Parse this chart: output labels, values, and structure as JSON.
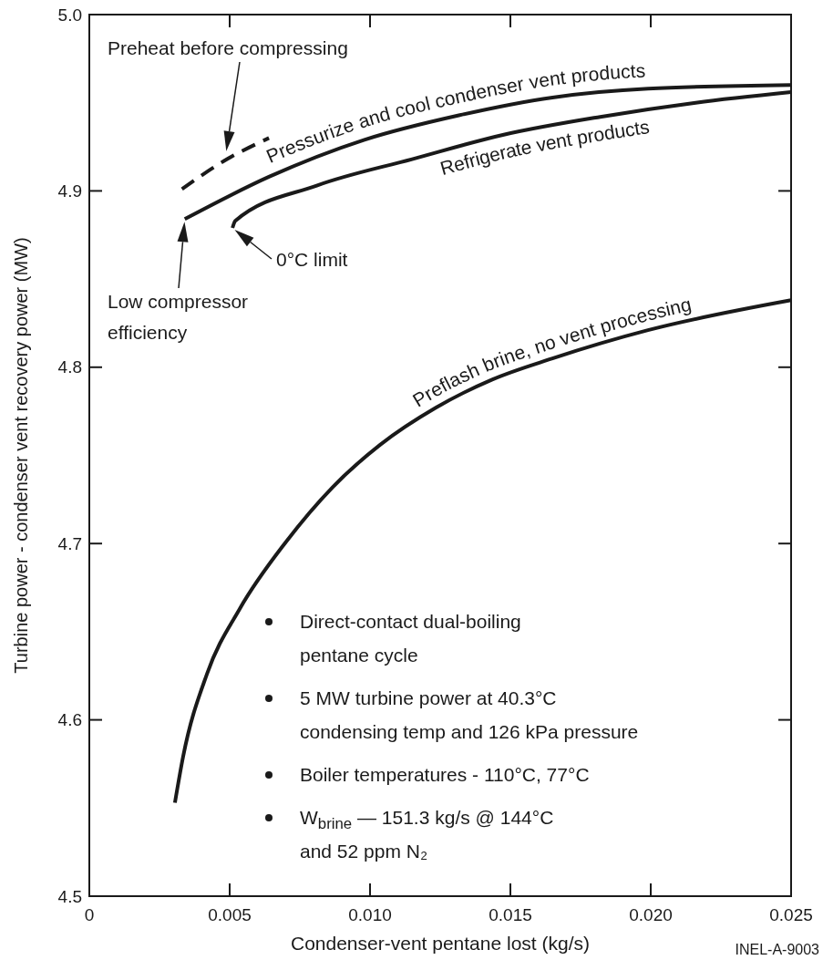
{
  "chart_data": {
    "type": "line",
    "xlabel": "Condenser-vent pentane lost (kg/s)",
    "ylabel": "Turbine power - condenser vent recovery power (MW)",
    "xlim": [
      0,
      0.025
    ],
    "ylim": [
      4.5,
      5.0
    ],
    "xticks": [
      {
        "value": 0,
        "label": "0"
      },
      {
        "value": 0.005,
        "label": "0.005"
      },
      {
        "value": 0.01,
        "label": "0.010"
      },
      {
        "value": 0.015,
        "label": "0.015"
      },
      {
        "value": 0.02,
        "label": "0.020"
      },
      {
        "value": 0.025,
        "label": "0.025"
      }
    ],
    "yticks": [
      {
        "value": 4.5,
        "label": "4.5"
      },
      {
        "value": 4.6,
        "label": "4.6"
      },
      {
        "value": 4.7,
        "label": "4.7"
      },
      {
        "value": 4.8,
        "label": "4.8"
      },
      {
        "value": 4.9,
        "label": "4.9"
      },
      {
        "value": 5.0,
        "label": "5.0"
      }
    ],
    "grid": false,
    "legend": false,
    "marker": "none",
    "line_style": "solid",
    "series": [
      {
        "color": "#1a1a1a",
        "line_style": "dashed",
        "x": [
          0.0033,
          0.0048,
          0.0064
        ],
        "values": [
          4.901,
          4.917,
          4.93
        ]
      },
      {
        "name": "Pressurize and cool condenser vent products",
        "color": "#1a1a1a",
        "x": [
          0.0034,
          0.0064,
          0.0098,
          0.0132,
          0.0165,
          0.0199,
          0.025
        ],
        "values": [
          4.884,
          4.908,
          4.929,
          4.943,
          4.953,
          4.958,
          4.96
        ]
      },
      {
        "name": "Refrigerate vent products",
        "color": "#1a1a1a",
        "x": [
          0.0051,
          0.0052,
          0.0081,
          0.0115,
          0.0148,
          0.0182,
          0.0216,
          0.025
        ],
        "values": [
          4.879,
          4.883,
          4.903,
          4.918,
          4.932,
          4.942,
          4.95,
          4.956
        ]
      },
      {
        "name": "Preflash brine, no vent processing",
        "color": "#1a1a1a",
        "x": [
          0.00305,
          0.00334,
          0.00419,
          0.00536,
          0.00701,
          0.00867,
          0.01036,
          0.01234,
          0.01435,
          0.0165,
          0.0199,
          0.025
        ],
        "values": [
          4.553,
          4.579,
          4.626,
          4.663,
          4.701,
          4.732,
          4.756,
          4.777,
          4.793,
          4.805,
          4.821,
          4.838
        ]
      }
    ],
    "annotations": [
      "Preheat before compressing",
      "Low compressor\nefficiency",
      {
        "text": "0°C limit",
        "x": 0.0051,
        "y": 4.879
      },
      "Direct-contact dual-boiling\npentane cycle",
      "5 MW turbine power at 40.3°C\ncondensing temp and 126 kPa pressure",
      "Boiler temperatures - 110°C, 77°C",
      "W$_{brine}$ — 151.3 kg/s @ 144°C\nand 52 ppm N₂",
      "INEL-A-9003"
    ]
  }
}
